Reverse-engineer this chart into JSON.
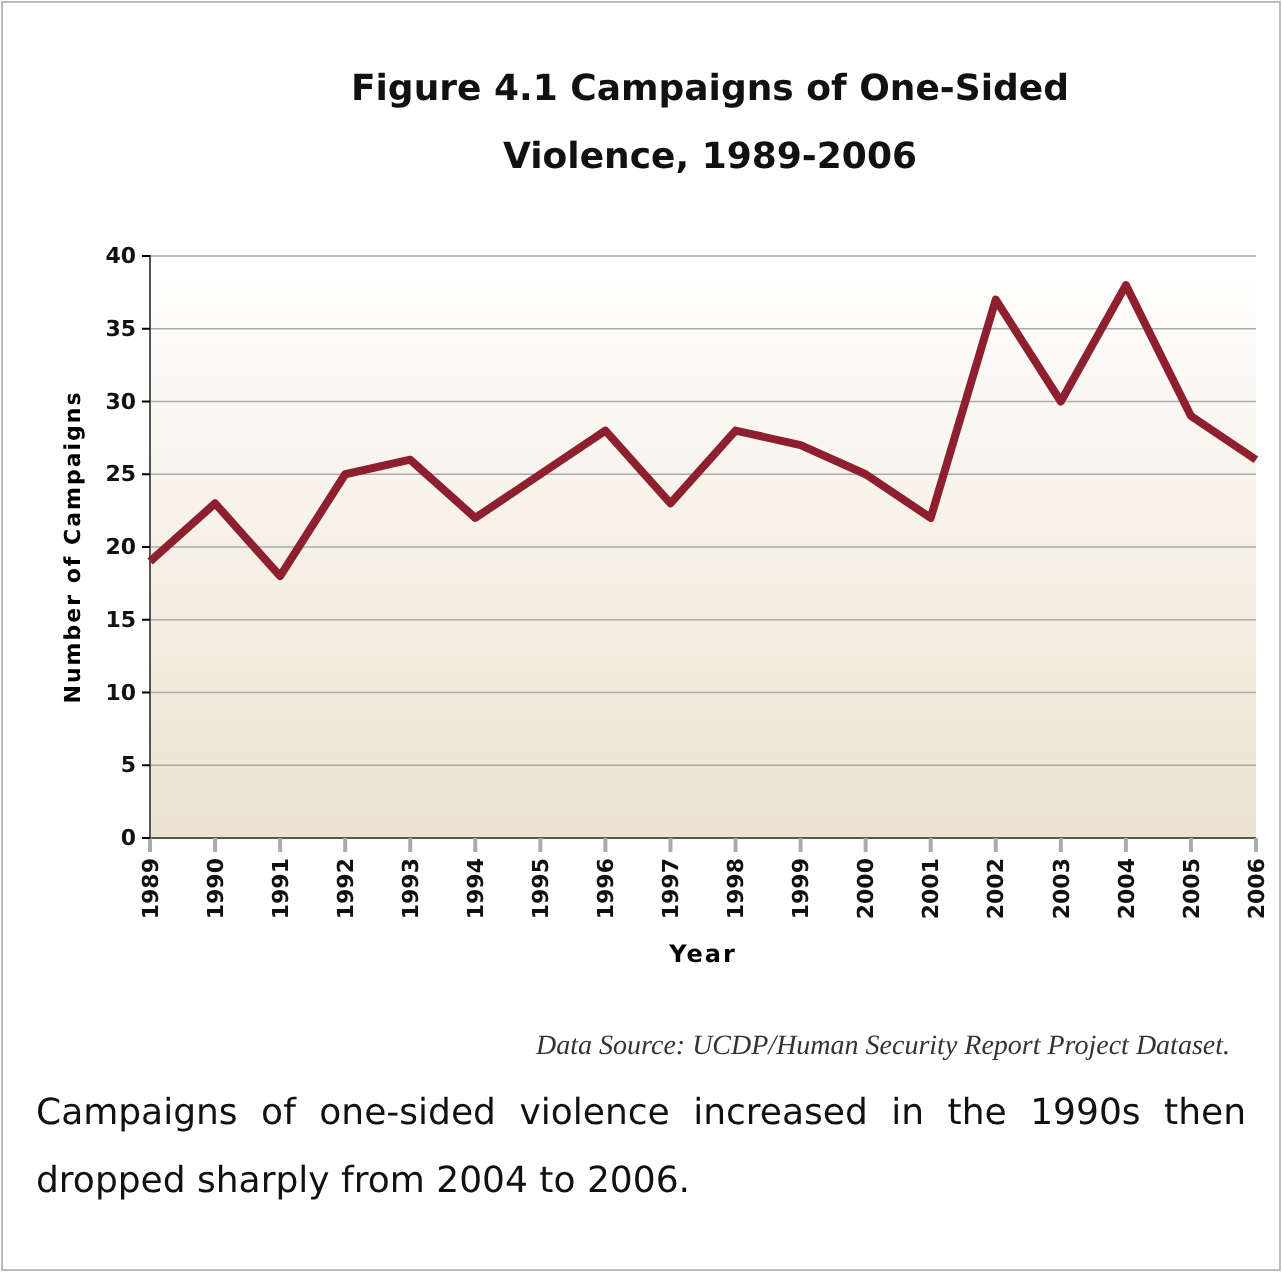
{
  "chart_data": {
    "type": "line",
    "title": "Figure 4.1 Campaigns of One-Sided Violence, 1989-2006",
    "xlabel": "Year",
    "ylabel": "Number of Campaigns",
    "x": [
      1989,
      1990,
      1991,
      1992,
      1993,
      1994,
      1995,
      1996,
      1997,
      1998,
      1999,
      2000,
      2001,
      2002,
      2003,
      2004,
      2005,
      2006
    ],
    "series": [
      {
        "color": "#8e1f2f",
        "values": [
          19,
          23,
          18,
          25,
          26,
          22,
          25,
          28,
          23,
          28,
          27,
          25,
          22,
          37,
          30,
          38,
          29,
          26
        ]
      }
    ],
    "xlim": [
      1989,
      2006
    ],
    "xticks": [
      1989,
      1990,
      1991,
      1992,
      1993,
      1994,
      1995,
      1996,
      1997,
      1998,
      1999,
      2000,
      2001,
      2002,
      2003,
      2004,
      2005,
      2006
    ],
    "ylim": [
      0,
      40
    ],
    "yticks": [
      0,
      5,
      10,
      15,
      20,
      25,
      30,
      35,
      40
    ],
    "grid": "y",
    "marker": "none",
    "line_style": "solid",
    "annotations": [
      "Data Source: UCDP/Human Security Report Project Dataset.",
      "Campaigns of one-sided violence increased in the 1990s then dropped sharply from 2004 to 2006."
    ]
  }
}
